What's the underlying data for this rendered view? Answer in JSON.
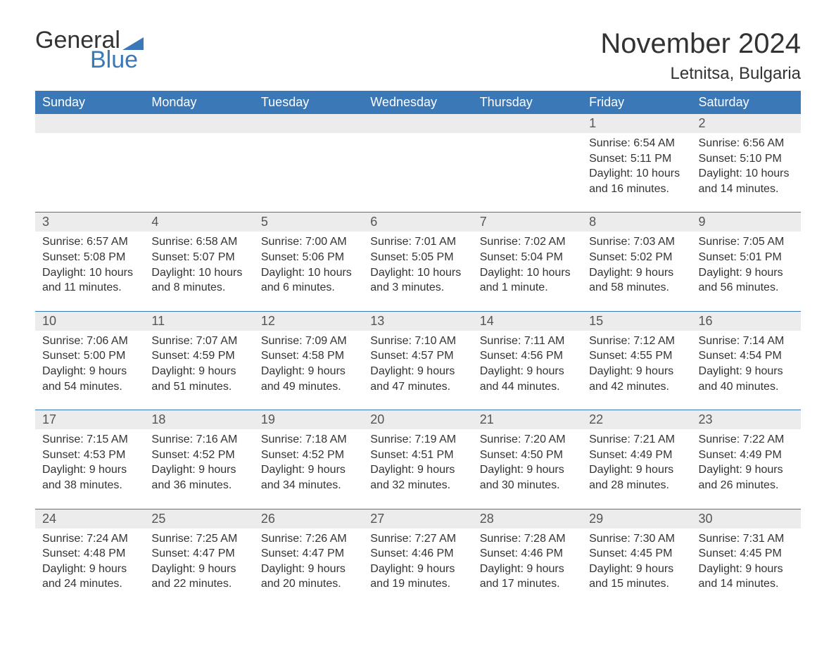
{
  "logo": {
    "word1": "General",
    "word2": "Blue",
    "flag_color": "#3a78b8"
  },
  "header": {
    "month_title": "November 2024",
    "location": "Letnitsa, Bulgaria"
  },
  "colors": {
    "header_bg": "#3a78b8",
    "header_text": "#ffffff",
    "daynum_bg": "#ececec",
    "body_text": "#333333",
    "rule": "#3a78b8"
  },
  "day_headers": [
    "Sunday",
    "Monday",
    "Tuesday",
    "Wednesday",
    "Thursday",
    "Friday",
    "Saturday"
  ],
  "weeks": [
    [
      null,
      null,
      null,
      null,
      null,
      {
        "day": "1",
        "sunrise": "Sunrise: 6:54 AM",
        "sunset": "Sunset: 5:11 PM",
        "daylight1": "Daylight: 10 hours",
        "daylight2": "and 16 minutes."
      },
      {
        "day": "2",
        "sunrise": "Sunrise: 6:56 AM",
        "sunset": "Sunset: 5:10 PM",
        "daylight1": "Daylight: 10 hours",
        "daylight2": "and 14 minutes."
      }
    ],
    [
      {
        "day": "3",
        "sunrise": "Sunrise: 6:57 AM",
        "sunset": "Sunset: 5:08 PM",
        "daylight1": "Daylight: 10 hours",
        "daylight2": "and 11 minutes."
      },
      {
        "day": "4",
        "sunrise": "Sunrise: 6:58 AM",
        "sunset": "Sunset: 5:07 PM",
        "daylight1": "Daylight: 10 hours",
        "daylight2": "and 8 minutes."
      },
      {
        "day": "5",
        "sunrise": "Sunrise: 7:00 AM",
        "sunset": "Sunset: 5:06 PM",
        "daylight1": "Daylight: 10 hours",
        "daylight2": "and 6 minutes."
      },
      {
        "day": "6",
        "sunrise": "Sunrise: 7:01 AM",
        "sunset": "Sunset: 5:05 PM",
        "daylight1": "Daylight: 10 hours",
        "daylight2": "and 3 minutes."
      },
      {
        "day": "7",
        "sunrise": "Sunrise: 7:02 AM",
        "sunset": "Sunset: 5:04 PM",
        "daylight1": "Daylight: 10 hours",
        "daylight2": "and 1 minute."
      },
      {
        "day": "8",
        "sunrise": "Sunrise: 7:03 AM",
        "sunset": "Sunset: 5:02 PM",
        "daylight1": "Daylight: 9 hours",
        "daylight2": "and 58 minutes."
      },
      {
        "day": "9",
        "sunrise": "Sunrise: 7:05 AM",
        "sunset": "Sunset: 5:01 PM",
        "daylight1": "Daylight: 9 hours",
        "daylight2": "and 56 minutes."
      }
    ],
    [
      {
        "day": "10",
        "sunrise": "Sunrise: 7:06 AM",
        "sunset": "Sunset: 5:00 PM",
        "daylight1": "Daylight: 9 hours",
        "daylight2": "and 54 minutes."
      },
      {
        "day": "11",
        "sunrise": "Sunrise: 7:07 AM",
        "sunset": "Sunset: 4:59 PM",
        "daylight1": "Daylight: 9 hours",
        "daylight2": "and 51 minutes."
      },
      {
        "day": "12",
        "sunrise": "Sunrise: 7:09 AM",
        "sunset": "Sunset: 4:58 PM",
        "daylight1": "Daylight: 9 hours",
        "daylight2": "and 49 minutes."
      },
      {
        "day": "13",
        "sunrise": "Sunrise: 7:10 AM",
        "sunset": "Sunset: 4:57 PM",
        "daylight1": "Daylight: 9 hours",
        "daylight2": "and 47 minutes."
      },
      {
        "day": "14",
        "sunrise": "Sunrise: 7:11 AM",
        "sunset": "Sunset: 4:56 PM",
        "daylight1": "Daylight: 9 hours",
        "daylight2": "and 44 minutes."
      },
      {
        "day": "15",
        "sunrise": "Sunrise: 7:12 AM",
        "sunset": "Sunset: 4:55 PM",
        "daylight1": "Daylight: 9 hours",
        "daylight2": "and 42 minutes."
      },
      {
        "day": "16",
        "sunrise": "Sunrise: 7:14 AM",
        "sunset": "Sunset: 4:54 PM",
        "daylight1": "Daylight: 9 hours",
        "daylight2": "and 40 minutes."
      }
    ],
    [
      {
        "day": "17",
        "sunrise": "Sunrise: 7:15 AM",
        "sunset": "Sunset: 4:53 PM",
        "daylight1": "Daylight: 9 hours",
        "daylight2": "and 38 minutes."
      },
      {
        "day": "18",
        "sunrise": "Sunrise: 7:16 AM",
        "sunset": "Sunset: 4:52 PM",
        "daylight1": "Daylight: 9 hours",
        "daylight2": "and 36 minutes."
      },
      {
        "day": "19",
        "sunrise": "Sunrise: 7:18 AM",
        "sunset": "Sunset: 4:52 PM",
        "daylight1": "Daylight: 9 hours",
        "daylight2": "and 34 minutes."
      },
      {
        "day": "20",
        "sunrise": "Sunrise: 7:19 AM",
        "sunset": "Sunset: 4:51 PM",
        "daylight1": "Daylight: 9 hours",
        "daylight2": "and 32 minutes."
      },
      {
        "day": "21",
        "sunrise": "Sunrise: 7:20 AM",
        "sunset": "Sunset: 4:50 PM",
        "daylight1": "Daylight: 9 hours",
        "daylight2": "and 30 minutes."
      },
      {
        "day": "22",
        "sunrise": "Sunrise: 7:21 AM",
        "sunset": "Sunset: 4:49 PM",
        "daylight1": "Daylight: 9 hours",
        "daylight2": "and 28 minutes."
      },
      {
        "day": "23",
        "sunrise": "Sunrise: 7:22 AM",
        "sunset": "Sunset: 4:49 PM",
        "daylight1": "Daylight: 9 hours",
        "daylight2": "and 26 minutes."
      }
    ],
    [
      {
        "day": "24",
        "sunrise": "Sunrise: 7:24 AM",
        "sunset": "Sunset: 4:48 PM",
        "daylight1": "Daylight: 9 hours",
        "daylight2": "and 24 minutes."
      },
      {
        "day": "25",
        "sunrise": "Sunrise: 7:25 AM",
        "sunset": "Sunset: 4:47 PM",
        "daylight1": "Daylight: 9 hours",
        "daylight2": "and 22 minutes."
      },
      {
        "day": "26",
        "sunrise": "Sunrise: 7:26 AM",
        "sunset": "Sunset: 4:47 PM",
        "daylight1": "Daylight: 9 hours",
        "daylight2": "and 20 minutes."
      },
      {
        "day": "27",
        "sunrise": "Sunrise: 7:27 AM",
        "sunset": "Sunset: 4:46 PM",
        "daylight1": "Daylight: 9 hours",
        "daylight2": "and 19 minutes."
      },
      {
        "day": "28",
        "sunrise": "Sunrise: 7:28 AM",
        "sunset": "Sunset: 4:46 PM",
        "daylight1": "Daylight: 9 hours",
        "daylight2": "and 17 minutes."
      },
      {
        "day": "29",
        "sunrise": "Sunrise: 7:30 AM",
        "sunset": "Sunset: 4:45 PM",
        "daylight1": "Daylight: 9 hours",
        "daylight2": "and 15 minutes."
      },
      {
        "day": "30",
        "sunrise": "Sunrise: 7:31 AM",
        "sunset": "Sunset: 4:45 PM",
        "daylight1": "Daylight: 9 hours",
        "daylight2": "and 14 minutes."
      }
    ]
  ]
}
